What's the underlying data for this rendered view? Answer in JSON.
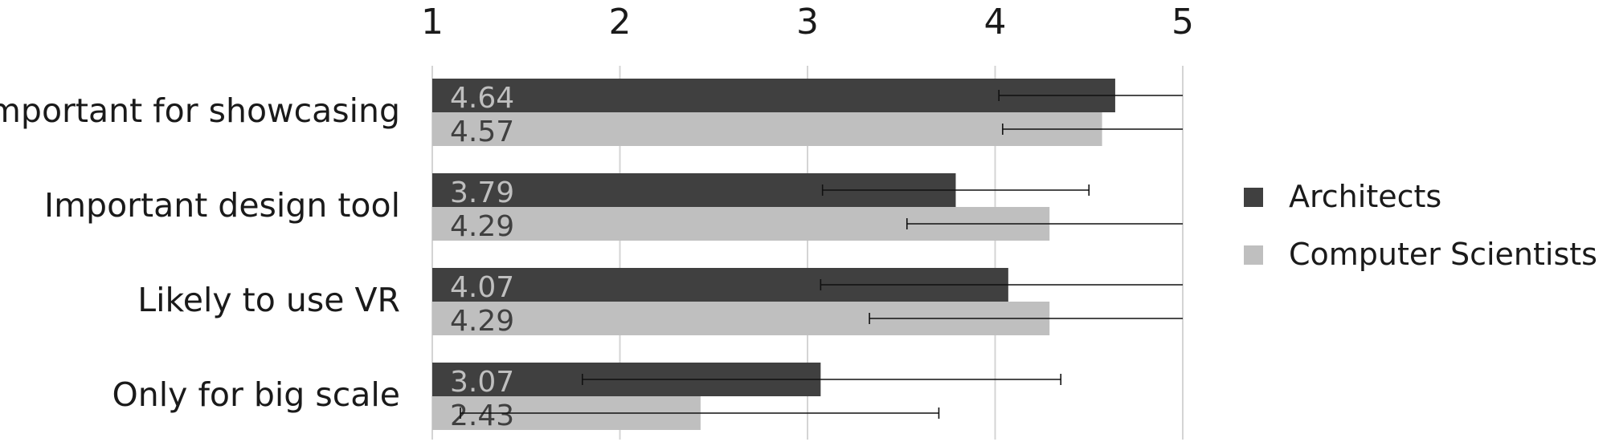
{
  "chart_data": {
    "type": "bar",
    "orientation": "horizontal",
    "categories": [
      "Important for showcasing",
      "Important design tool",
      "Likely to use VR",
      "Only for big scale"
    ],
    "series": [
      {
        "name": "Architects",
        "color": "#404040",
        "label_color": "#bfbfbf",
        "values": [
          4.64,
          3.79,
          4.07,
          3.07
        ],
        "error_low": [
          4.02,
          3.08,
          3.07,
          1.8
        ],
        "error_high": [
          5.0,
          4.5,
          5.0,
          4.35
        ]
      },
      {
        "name": "Computer Scientists",
        "color": "#bfbfbf",
        "label_color": "#404040",
        "values": [
          4.57,
          4.29,
          4.29,
          2.43
        ],
        "error_low": [
          4.04,
          3.53,
          3.33,
          1.15
        ],
        "error_high": [
          5.0,
          5.0,
          5.0,
          3.7
        ]
      }
    ],
    "value_labels": [
      [
        "4.64",
        "3.79",
        "4.07",
        "3.07"
      ],
      [
        "4.57",
        "4.29",
        "4.29",
        "2.43"
      ]
    ],
    "xlim": [
      1,
      5
    ],
    "xticks": [
      "1",
      "2",
      "3",
      "4",
      "5"
    ],
    "x_axis_position": "top",
    "grid": true,
    "legend": "right"
  }
}
